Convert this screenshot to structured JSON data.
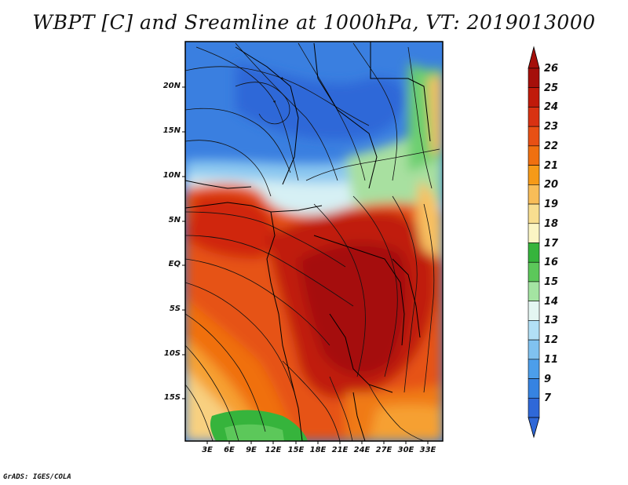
{
  "title": "WBPT [C] and Sreamline at 1000hPa, VT: 2019013000",
  "credit": "GrADS: IGES/COLA",
  "map": {
    "lat_labels": [
      "20N",
      "15N",
      "10N",
      "5N",
      "EQ",
      "5S",
      "10S",
      "15S"
    ],
    "lon_labels": [
      "3E",
      "6E",
      "9E",
      "12E",
      "15E",
      "18E",
      "21E",
      "24E",
      "27E",
      "30E",
      "33E"
    ],
    "regions": [
      {
        "name": "north-cold",
        "level": "11"
      },
      {
        "name": "transition-band",
        "level": "15"
      },
      {
        "name": "equatorial-warm",
        "level": "24"
      },
      {
        "name": "congo-basin-hot",
        "level": "25"
      },
      {
        "name": "southwest-cool",
        "level": "20"
      },
      {
        "name": "southwest-green",
        "level": "17"
      }
    ]
  },
  "colorbar": {
    "levels": [
      "26",
      "25",
      "24",
      "23",
      "22",
      "21",
      "20",
      "19",
      "18",
      "17",
      "16",
      "15",
      "14",
      "13",
      "12",
      "11",
      "9",
      "7"
    ],
    "colors": [
      "#a50f0a",
      "#c01a0a",
      "#d83212",
      "#e85014",
      "#f07010",
      "#f69a18",
      "#f8bd58",
      "#f8de90",
      "#fbf5c4",
      "#36b43c",
      "#5cc85a",
      "#a4e4a2",
      "#e4f6f2",
      "#b2e0f6",
      "#80c2f0",
      "#4c9eea",
      "#3683e2",
      "#2f68d8"
    ]
  }
}
